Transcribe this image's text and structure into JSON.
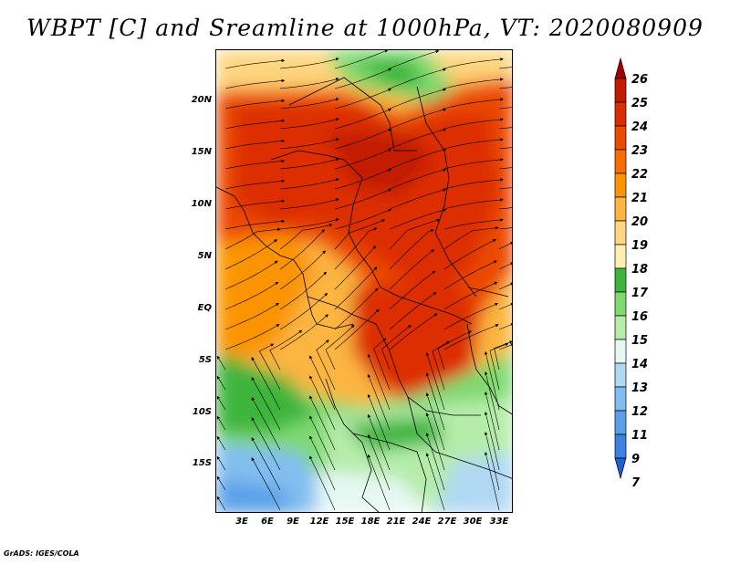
{
  "title": "WBPT [C] and Sreamline at 1000hPa, VT: 2020080909",
  "credit": "GrADS: IGES/COLA",
  "lat_labels": [
    "20N",
    "15N",
    "10N",
    "5N",
    "EQ",
    "5S",
    "10S",
    "15S"
  ],
  "lon_labels": [
    "3E",
    "6E",
    "9E",
    "12E",
    "15E",
    "18E",
    "21E",
    "24E",
    "27E",
    "30E",
    "33E"
  ],
  "colorbar": {
    "labels": [
      "26",
      "25",
      "24",
      "23",
      "22",
      "21",
      "20",
      "19",
      "18",
      "17",
      "16",
      "15",
      "14",
      "13",
      "12",
      "11",
      "9",
      "7"
    ],
    "colors": [
      "#a50000",
      "#c31a00",
      "#dc2d00",
      "#eb4a00",
      "#f56e00",
      "#fb9400",
      "#fbb540",
      "#fdd67f",
      "#fef0b0",
      "#3db53d",
      "#7fd96f",
      "#b5ecaa",
      "#e6f8f2",
      "#b0d8f3",
      "#82bdf0",
      "#5aa0e9",
      "#3c82e0",
      "#1f5fd0"
    ]
  }
}
